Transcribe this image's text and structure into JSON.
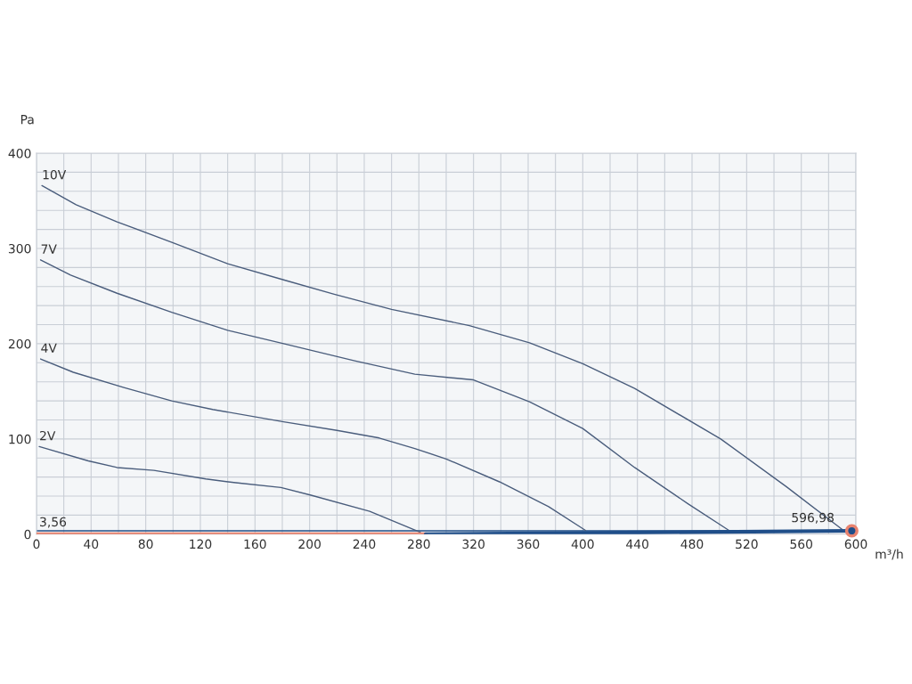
{
  "chart_data": {
    "type": "line",
    "xlabel": "m³/h",
    "ylabel": "Pa",
    "xlim": [
      0,
      600
    ],
    "ylim": [
      0,
      400
    ],
    "xticks": [
      0,
      {
        "value": 20,
        "label": null
      },
      40,
      {
        "value": 60,
        "label": null
      },
      80,
      {
        "value": 100,
        "label": null
      },
      120,
      {
        "value": 140,
        "label": null
      },
      160,
      {
        "value": 180,
        "label": null
      },
      200,
      {
        "value": 220,
        "label": null
      },
      240,
      {
        "value": 260,
        "label": null
      },
      280,
      {
        "value": 300,
        "label": null
      },
      320,
      {
        "value": 340,
        "label": null
      },
      360,
      {
        "value": 380,
        "label": null
      },
      400,
      {
        "value": 420,
        "label": null
      },
      440,
      {
        "value": 460,
        "label": null
      },
      480,
      {
        "value": 500,
        "label": null
      },
      520,
      {
        "value": 540,
        "label": null
      },
      560,
      {
        "value": 580,
        "label": null
      },
      600
    ],
    "yticks": [
      0,
      {
        "value": 20,
        "label": null
      },
      {
        "value": 40,
        "label": null
      },
      {
        "value": 60,
        "label": null
      },
      {
        "value": 80,
        "label": null
      },
      100,
      {
        "value": 120,
        "label": null
      },
      {
        "value": 140,
        "label": null
      },
      {
        "value": 160,
        "label": null
      },
      {
        "value": 180,
        "label": null
      },
      200,
      {
        "value": 220,
        "label": null
      },
      {
        "value": 240,
        "label": null
      },
      {
        "value": 260,
        "label": null
      },
      {
        "value": 280,
        "label": null
      },
      300,
      {
        "value": 320,
        "label": null
      },
      {
        "value": 340,
        "label": null
      },
      {
        "value": 360,
        "label": null
      },
      {
        "value": 380,
        "label": null
      },
      400
    ],
    "grid": true,
    "legend": false,
    "marker": "none",
    "line_style": "solid",
    "series": [
      {
        "name": "10V",
        "color": "#4a5d7c",
        "x": [
          4,
          29,
          59,
          100,
          140,
          181,
          218,
          260,
          317,
          361,
          400,
          438,
          501,
          549,
          590
        ],
        "values": [
          366,
          346,
          328,
          306,
          284,
          267,
          252,
          236,
          219,
          201,
          179,
          153,
          100,
          50,
          5
        ]
      },
      {
        "name": "7V",
        "color": "#4a5d7c",
        "x": [
          3,
          25,
          59,
          99,
          140,
          181,
          233,
          277,
          320,
          361,
          400,
          438,
          477,
          507
        ],
        "values": [
          288,
          272,
          253,
          233,
          214,
          200,
          182,
          168,
          162,
          139,
          111,
          70,
          32,
          4
        ]
      },
      {
        "name": "4V",
        "color": "#4a5d7c",
        "x": [
          3,
          27,
          64,
          99,
          129,
          181,
          220,
          251,
          277,
          300,
          339,
          375,
          402
        ],
        "values": [
          184,
          170,
          154,
          140,
          131,
          118,
          109,
          101,
          90,
          79,
          55,
          29,
          4
        ]
      },
      {
        "name": "2V",
        "color": "#4a5d7c",
        "x": [
          2,
          38,
          59,
          86,
          124,
          146,
          179,
          201,
          244,
          281
        ],
        "values": [
          92,
          77,
          70,
          67,
          58,
          54,
          49,
          41,
          24,
          2
        ]
      },
      {
        "color": "#e8826e",
        "x": [
          0,
          285
        ],
        "values": [
          0,
          0
        ]
      },
      {
        "color": "#1f4e89",
        "x": [
          285,
          596.98
        ],
        "values": [
          0,
          3.56
        ]
      },
      {
        "type": "scatter",
        "marker": "circle",
        "color": "#1f4e89",
        "x": [
          596.98
        ],
        "values": [
          3.56
        ]
      }
    ],
    "ref_lines": [
      {
        "axis": "y",
        "value": 3.56,
        "label": "3,56",
        "color": "#1f4e89"
      }
    ],
    "annotations": [
      {
        "text": "596,98",
        "x": 596.98,
        "y": 3.56
      }
    ]
  }
}
